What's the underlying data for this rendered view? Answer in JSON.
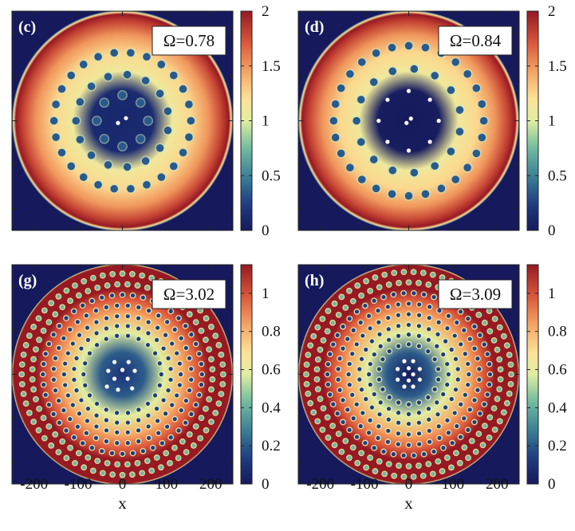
{
  "figure": {
    "xlabel": "x",
    "x_ticks": [
      "-200",
      "-100",
      "0",
      "100",
      "200"
    ]
  },
  "chart_data": [
    {
      "type": "heatmap",
      "panel": "(c)",
      "omega_label": "Ω=0.78",
      "omega": 0.78,
      "xlim": [
        -250,
        250
      ],
      "ylim": [
        -250,
        250
      ],
      "colorbar_range": [
        0,
        2
      ],
      "colorbar_ticks": [
        "0",
        "0.5",
        "1",
        "1.5",
        "2"
      ],
      "density_peak": 2.0,
      "density_center": 0.1,
      "vortex_rings": [
        {
          "radius": 155,
          "count": 26
        },
        {
          "radius": 105,
          "count": 15
        },
        {
          "radius": 58,
          "count": 8
        }
      ],
      "white_dots": [
        [
          -10,
          -5
        ],
        [
          8,
          6
        ]
      ]
    },
    {
      "type": "heatmap",
      "panel": "(d)",
      "omega_label": "Ω=0.84",
      "omega": 0.84,
      "xlim": [
        -250,
        250
      ],
      "ylim": [
        -250,
        250
      ],
      "colorbar_range": [
        0,
        2
      ],
      "colorbar_ticks": [
        "0",
        "0.5",
        "1",
        "1.5",
        "2"
      ],
      "density_peak": 2.05,
      "density_center": 0.0,
      "vortex_rings": [
        {
          "radius": 170,
          "count": 28
        },
        {
          "radius": 118,
          "count": 15
        }
      ],
      "white_dots": [
        [
          0,
          68
        ],
        [
          -48,
          48
        ],
        [
          48,
          48
        ],
        [
          -68,
          0
        ],
        [
          68,
          0
        ],
        [
          -48,
          -48
        ],
        [
          48,
          -48
        ],
        [
          0,
          -68
        ],
        [
          -5,
          -5
        ],
        [
          5,
          5
        ]
      ]
    },
    {
      "type": "heatmap",
      "panel": "(g)",
      "omega_label": "Ω=3.02",
      "omega": 3.02,
      "xlim": [
        -250,
        250
      ],
      "ylim": [
        -250,
        250
      ],
      "colorbar_range": [
        0,
        1.15
      ],
      "colorbar_ticks": [
        "0",
        "0.2",
        "0.4",
        "0.6",
        "0.8",
        "1"
      ],
      "density_peak": 1.15,
      "density_center": 0.1,
      "vortex_rings": [
        {
          "radius": 228,
          "count": 64
        },
        {
          "radius": 204,
          "count": 56
        },
        {
          "radius": 180,
          "count": 48
        },
        {
          "radius": 156,
          "count": 40
        },
        {
          "radius": 132,
          "count": 34
        },
        {
          "radius": 110,
          "count": 28
        },
        {
          "radius": 88,
          "count": 22
        }
      ],
      "white_dots": [
        [
          -18,
          28
        ],
        [
          14,
          28
        ],
        [
          -32,
          8
        ],
        [
          0,
          10
        ],
        [
          28,
          8
        ],
        [
          -18,
          -10
        ],
        [
          12,
          -10
        ],
        [
          -35,
          -28
        ],
        [
          -10,
          -35
        ],
        [
          22,
          -32
        ]
      ]
    },
    {
      "type": "heatmap",
      "panel": "(h)",
      "omega_label": "Ω=3.09",
      "omega": 3.09,
      "xlim": [
        -250,
        250
      ],
      "ylim": [
        -250,
        250
      ],
      "colorbar_range": [
        0,
        1.15
      ],
      "colorbar_ticks": [
        "0",
        "0.2",
        "0.4",
        "0.6",
        "0.8",
        "1"
      ],
      "density_peak": 1.15,
      "density_center": 0.0,
      "vortex_rings": [
        {
          "radius": 232,
          "count": 66
        },
        {
          "radius": 208,
          "count": 58
        },
        {
          "radius": 184,
          "count": 50
        },
        {
          "radius": 160,
          "count": 42
        },
        {
          "radius": 136,
          "count": 36
        },
        {
          "radius": 112,
          "count": 30
        },
        {
          "radius": 90,
          "count": 24
        },
        {
          "radius": 68,
          "count": 18
        }
      ],
      "white_dots": [
        [
          -10,
          30
        ],
        [
          10,
          30
        ],
        [
          -25,
          12
        ],
        [
          0,
          14
        ],
        [
          25,
          12
        ],
        [
          -10,
          0
        ],
        [
          10,
          0
        ],
        [
          -25,
          -12
        ],
        [
          0,
          -14
        ],
        [
          25,
          -12
        ],
        [
          -10,
          -28
        ],
        [
          10,
          -28
        ]
      ]
    }
  ]
}
